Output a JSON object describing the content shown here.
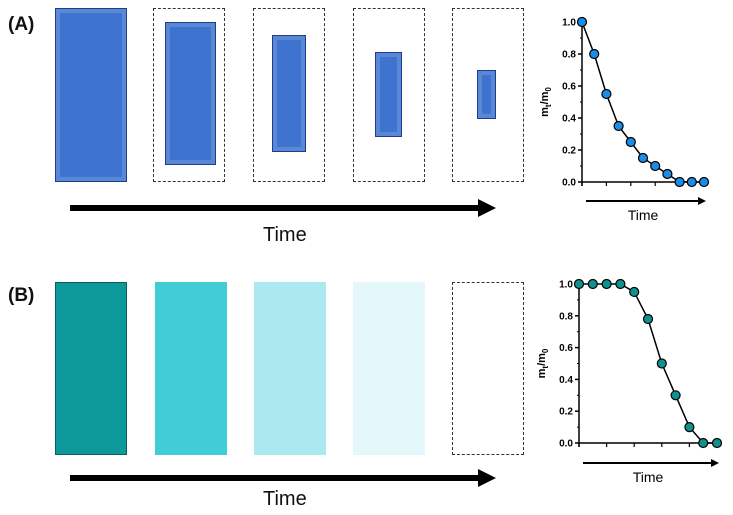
{
  "panel_a": {
    "label": "(A)",
    "axis_label": "Time",
    "block_color": "#3f73d0"
  },
  "panel_b": {
    "label": "(B)",
    "axis_label": "Time",
    "block_colors": [
      "#0d9899",
      "#40cdd6",
      "#a9e9ef",
      "#e4f8fb"
    ]
  },
  "chart_data": [
    {
      "type": "line",
      "panel": "A",
      "ylabel": "mt/m0",
      "xlabel": "Time",
      "x": [
        0,
        1,
        2,
        3,
        4,
        5,
        6,
        7,
        8,
        9,
        10
      ],
      "values": [
        1.0,
        0.8,
        0.55,
        0.35,
        0.25,
        0.15,
        0.1,
        0.05,
        0,
        0,
        0
      ],
      "ylim": [
        0,
        1.0
      ],
      "yticks": [
        "0.0",
        "0.2",
        "0.4",
        "0.6",
        "0.8",
        "1.0"
      ],
      "marker_color": "#1a8ee6",
      "grid": false
    },
    {
      "type": "line",
      "panel": "B",
      "ylabel": "mt/m0",
      "xlabel": "Time",
      "x": [
        0,
        1,
        2,
        3,
        4,
        5,
        6,
        7,
        8,
        9,
        10
      ],
      "values": [
        1.0,
        1.0,
        1.0,
        1.0,
        0.95,
        0.78,
        0.5,
        0.3,
        0.1,
        0,
        0
      ],
      "ylim": [
        0,
        1.0
      ],
      "yticks": [
        "0.0",
        "0.2",
        "0.4",
        "0.6",
        "0.8",
        "1.0"
      ],
      "marker_color": "#0f928f",
      "grid": false
    }
  ]
}
